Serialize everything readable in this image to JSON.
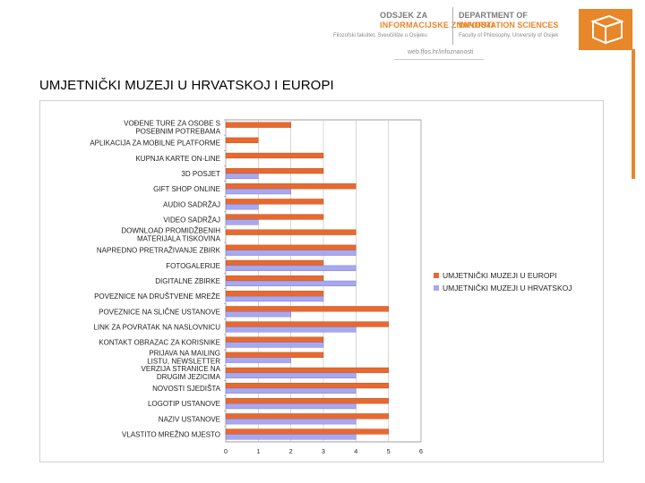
{
  "header": {
    "dept_hr_line1": "ODSJEK ZA",
    "dept_hr_line2": "INFORMACIJSKE ZNANOSTI",
    "dept_hr_line3": "Filozofski fakultet, Sveučilište u Osijeku",
    "dept_en_line1": "DEPARTMENT OF",
    "dept_en_line2": "INFORMATION SCIENCES",
    "dept_en_line3": "Faculty of Philosophy, University of Osijek",
    "url": "web.ffos.hr/infoznanosti",
    "accent_color": "#e8862a"
  },
  "slide": {
    "title": "UMJETNIČKI MUZEJI U HRVATSKOJ I EUROPI"
  },
  "chart_data": {
    "type": "bar",
    "orientation": "horizontal",
    "categories": [
      "VOĐENE TURE ZA OSOBE S POSEBNIM POTREBAMA",
      "APLIKACIJA ZA MOBILNE PLATFORME",
      "KUPNJA KARTE ON-LINE",
      "3D POSJET",
      "GIFT SHOP ONLINE",
      "AUDIO SADRŽAJ",
      "VIDEO SADRŽAJ",
      "DOWNLOAD PROMIDŽBENIH MATERIJALA TISKOVINA",
      "NAPREDNO PRETRAŽIVANJE ZBIRK",
      "FOTOGALERIJE",
      "DIGITALNE ZBIRKE",
      "POVEZNICE NA DRUŠTVENE MREŽE",
      "POVEZNICE NA SLIČNE USTANOVE",
      "LINK ZA POVRATAK NA NASLOVNICU",
      "KONTAKT OBRAZAC ZA KORISNIKE",
      "PRIJAVA NA MAILING LISTU, NEWSLETTER",
      "VERZIJA STRANICE NA DRUGIM JEZICIMA",
      "NOVOSTI SJEDIŠTA",
      "LOGOTIP USTANOVE",
      "NAZIV USTANOVE",
      "VLASTITO MREŽNO MJESTO"
    ],
    "series": [
      {
        "name": "UMJETNIČKI MUZEJI U EUROPI",
        "color": "#e8692f",
        "values": [
          2,
          1,
          3,
          3,
          4,
          3,
          3,
          4,
          4,
          3,
          3,
          3,
          5,
          5,
          3,
          3,
          5,
          5,
          5,
          5,
          5
        ]
      },
      {
        "name": "UMJETNIČKI MUZEJI U HRVATSKOJ",
        "color": "#a8a8f0",
        "values": [
          0,
          0,
          0,
          1,
          2,
          1,
          1,
          0,
          4,
          4,
          4,
          3,
          2,
          4,
          3,
          2,
          4,
          4,
          4,
          4,
          4
        ]
      }
    ],
    "xlim": [
      0,
      6
    ],
    "xticks": [
      "0",
      "1",
      "2",
      "3",
      "4",
      "5",
      "6"
    ],
    "grid": "vertical",
    "legend": "right"
  }
}
